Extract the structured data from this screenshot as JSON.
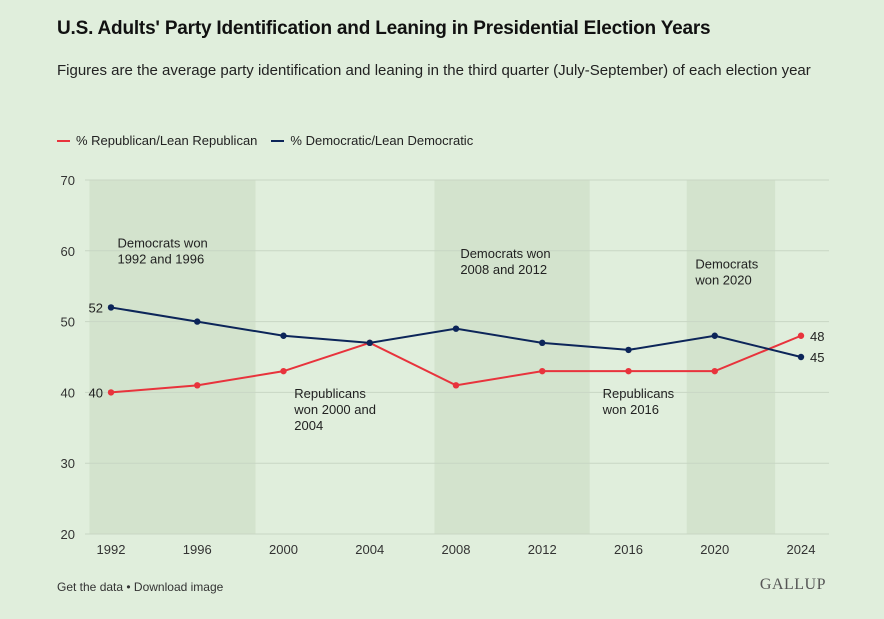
{
  "header": {
    "title": "U.S. Adults' Party Identification and Leaning in Presidential Election Years",
    "subtitle": "Figures are the average party identification and leaning in the third quarter (July-September) of each election year"
  },
  "colors": {
    "republican": "#e8333c",
    "democratic": "#0c2559",
    "shading": "#d3e3cd",
    "grid": "#c8d6c4"
  },
  "chart_data": {
    "type": "line",
    "x": [
      1992,
      1996,
      2000,
      2004,
      2008,
      2012,
      2016,
      2020,
      2024
    ],
    "series": [
      {
        "name": "% Republican/Lean Republican",
        "color": "#e8333c",
        "values": [
          40,
          41,
          43,
          47,
          41,
          43,
          43,
          43,
          48
        ]
      },
      {
        "name": "% Democratic/Lean Democratic",
        "color": "#0c2559",
        "values": [
          52,
          50,
          48,
          47,
          49,
          47,
          46,
          48,
          45
        ]
      }
    ],
    "ylim": [
      20,
      70
    ],
    "yticks": [
      20,
      30,
      40,
      50,
      60,
      70
    ],
    "xticks": [
      "1992",
      "1996",
      "2000",
      "2004",
      "2008",
      "2012",
      "2016",
      "2020",
      "2024"
    ],
    "grid": true,
    "legend_position": "top-left",
    "shaded_periods": [
      {
        "from": 1991,
        "to": 1998.7,
        "label": "Democrats won 1992 and 1996"
      },
      {
        "from": 2007,
        "to": 2014.2,
        "label": "Democrats won 2008 and 2012"
      },
      {
        "from": 2018.7,
        "to": 2022.8,
        "label": "Democrats won 2020"
      }
    ],
    "annotations": [
      {
        "lines": [
          "Democrats won",
          "1992 and 1996"
        ],
        "x": 1992.3,
        "y": 60.5
      },
      {
        "lines": [
          "Democrats won",
          "2008 and 2012"
        ],
        "x": 2008.2,
        "y": 59
      },
      {
        "lines": [
          "Democrats",
          "won 2020"
        ],
        "x": 2019.1,
        "y": 57.5
      },
      {
        "lines": [
          "Republicans",
          "won 2000 and",
          "2004"
        ],
        "x": 2000.5,
        "y": 39.2
      },
      {
        "lines": [
          "Republicans",
          "won 2016"
        ],
        "x": 2014.8,
        "y": 39.2
      }
    ],
    "endpoint_labels": [
      {
        "series": 1,
        "index": 0,
        "text": "52",
        "side": "left"
      },
      {
        "series": 0,
        "index": 0,
        "text": "40",
        "side": "left"
      },
      {
        "series": 0,
        "index": 8,
        "text": "48",
        "side": "right"
      },
      {
        "series": 1,
        "index": 8,
        "text": "45",
        "side": "right"
      }
    ]
  },
  "footer": {
    "get_data": "Get the data",
    "separator": " • ",
    "download": "Download image"
  },
  "logo": {
    "text": "GALLUP"
  }
}
